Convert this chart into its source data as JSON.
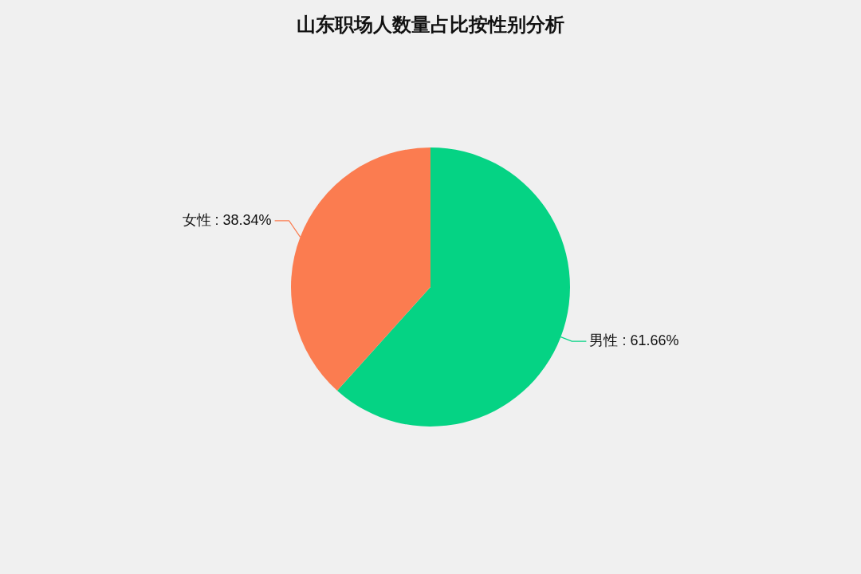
{
  "chart_data": {
    "type": "pie",
    "title": "山东职场人数量占比按性别分析",
    "categories": [
      "男性",
      "女性"
    ],
    "values": [
      61.66,
      38.34
    ],
    "colors": [
      "#05d384",
      "#fb7c50"
    ],
    "value_labels": [
      ": 61.66%",
      ": 38.34%"
    ]
  }
}
